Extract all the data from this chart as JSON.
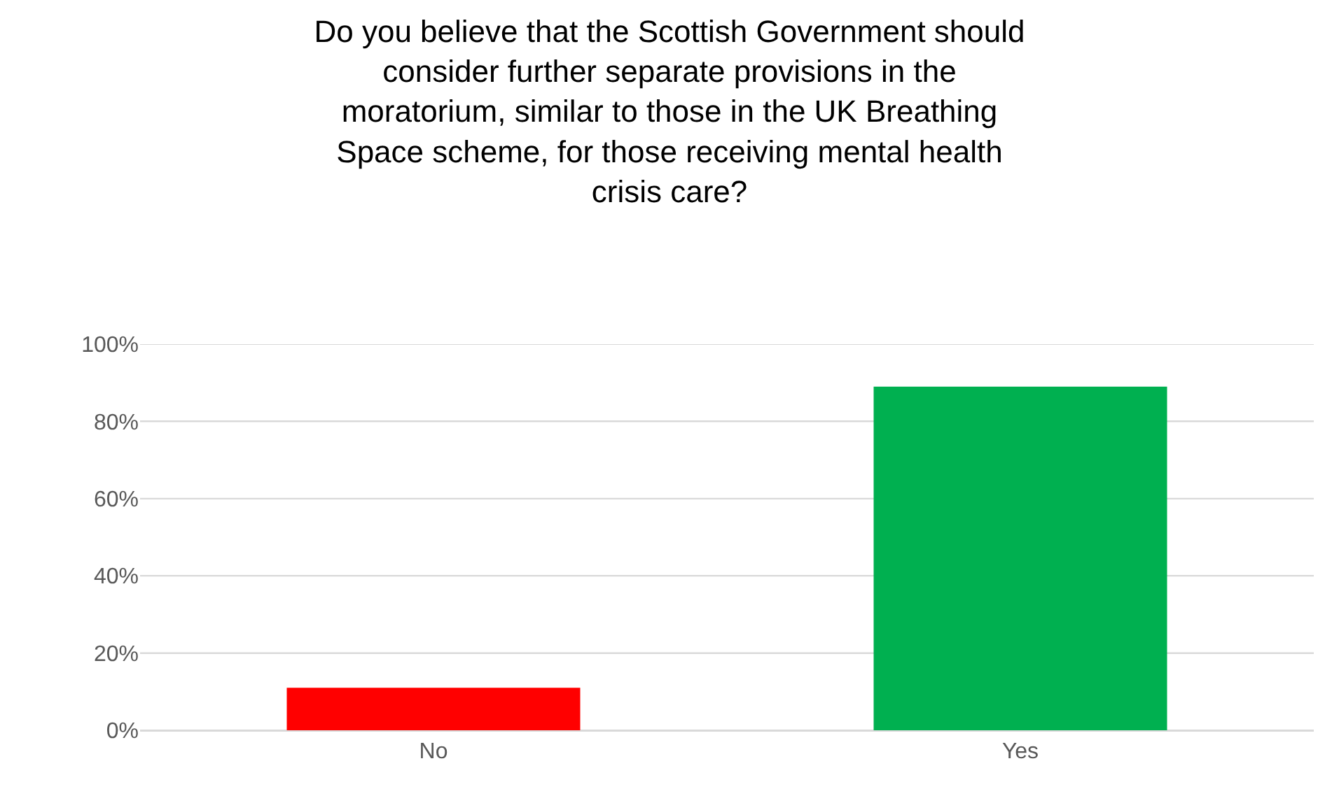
{
  "chart_data": {
    "type": "bar",
    "title": "Do you believe that the Scottish Government should\nconsider further separate provisions in the\nmoratorium, similar to those in the UK Breathing\nSpace scheme, for those receiving mental health\ncrisis care?",
    "categories": [
      "No",
      "Yes"
    ],
    "values": [
      11,
      89
    ],
    "colors": [
      "#ff0000",
      "#00b050"
    ],
    "ylim": [
      0,
      100
    ],
    "yticks": [
      {
        "value": 0,
        "label": "0%"
      },
      {
        "value": 20,
        "label": "20%"
      },
      {
        "value": 40,
        "label": "40%"
      },
      {
        "value": 60,
        "label": "60%"
      },
      {
        "value": 80,
        "label": "80%"
      },
      {
        "value": 100,
        "label": "100%"
      }
    ],
    "grid": "y"
  }
}
